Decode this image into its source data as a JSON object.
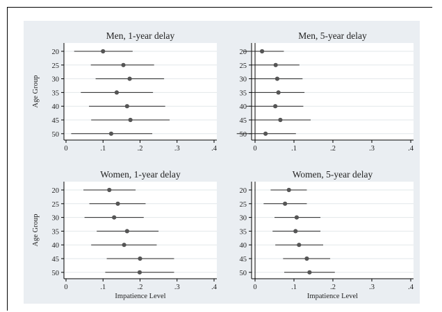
{
  "chart_data": [
    {
      "type": "scatter",
      "title": "Men, 1-year delay",
      "xlabel": "",
      "ylabel": "Age Group",
      "xlim": [
        0,
        0.4
      ],
      "x_ticks": [
        "0",
        ".1",
        ".2",
        ".3",
        ".4"
      ],
      "categories": [
        "20",
        "25",
        "30",
        "35",
        "40",
        "45",
        "50"
      ],
      "estimates": [
        0.1,
        0.155,
        0.172,
        0.137,
        0.165,
        0.174,
        0.122
      ],
      "ci_low": [
        0.022,
        0.067,
        0.08,
        0.04,
        0.062,
        0.068,
        0.014
      ],
      "ci_high": [
        0.18,
        0.238,
        0.265,
        0.235,
        0.268,
        0.28,
        0.233
      ],
      "grid": "horizontal",
      "reference_line_x": null
    },
    {
      "type": "scatter",
      "title": "Men, 5-year delay",
      "xlabel": "",
      "ylabel": "",
      "xlim": [
        -0.05,
        0.4
      ],
      "x_ticks": [
        "0",
        ".1",
        ".2",
        ".3",
        ".4"
      ],
      "categories": [
        "20",
        "25",
        "30",
        "35",
        "40",
        "45",
        "50"
      ],
      "estimates": [
        0.018,
        0.053,
        0.057,
        0.06,
        0.052,
        0.065,
        0.027
      ],
      "ci_low": [
        -0.03,
        -0.008,
        -0.008,
        -0.008,
        -0.022,
        -0.008,
        -0.047
      ],
      "ci_high": [
        0.074,
        0.114,
        0.122,
        0.127,
        0.124,
        0.143,
        0.105
      ],
      "grid": "horizontal",
      "reference_line_x": 0
    },
    {
      "type": "scatter",
      "title": "Women, 1-year delay",
      "xlabel": "Impatience Level",
      "ylabel": "Age Group",
      "xlim": [
        0,
        0.4
      ],
      "x_ticks": [
        "0",
        ".1",
        ".2",
        ".3",
        ".4"
      ],
      "categories": [
        "20",
        "25",
        "30",
        "35",
        "40",
        "45",
        "50"
      ],
      "estimates": [
        0.117,
        0.14,
        0.13,
        0.165,
        0.157,
        0.2,
        0.199
      ],
      "ci_low": [
        0.047,
        0.063,
        0.05,
        0.083,
        0.068,
        0.11,
        0.106
      ],
      "ci_high": [
        0.188,
        0.215,
        0.21,
        0.25,
        0.245,
        0.292,
        0.292
      ],
      "grid": "horizontal",
      "reference_line_x": null
    },
    {
      "type": "scatter",
      "title": "Women, 5-year delay",
      "xlabel": "Impatience Level",
      "ylabel": "",
      "xlim": [
        0,
        0.4
      ],
      "x_ticks": [
        "0",
        ".1",
        ".2",
        ".3",
        ".4"
      ],
      "categories": [
        "20",
        "25",
        "30",
        "35",
        "40",
        "45",
        "50"
      ],
      "estimates": [
        0.087,
        0.077,
        0.107,
        0.104,
        0.113,
        0.133,
        0.14
      ],
      "ci_low": [
        0.04,
        0.022,
        0.05,
        0.045,
        0.052,
        0.072,
        0.075
      ],
      "ci_high": [
        0.133,
        0.133,
        0.168,
        0.168,
        0.175,
        0.193,
        0.205
      ],
      "grid": "horizontal",
      "reference_line_x": 0
    }
  ]
}
